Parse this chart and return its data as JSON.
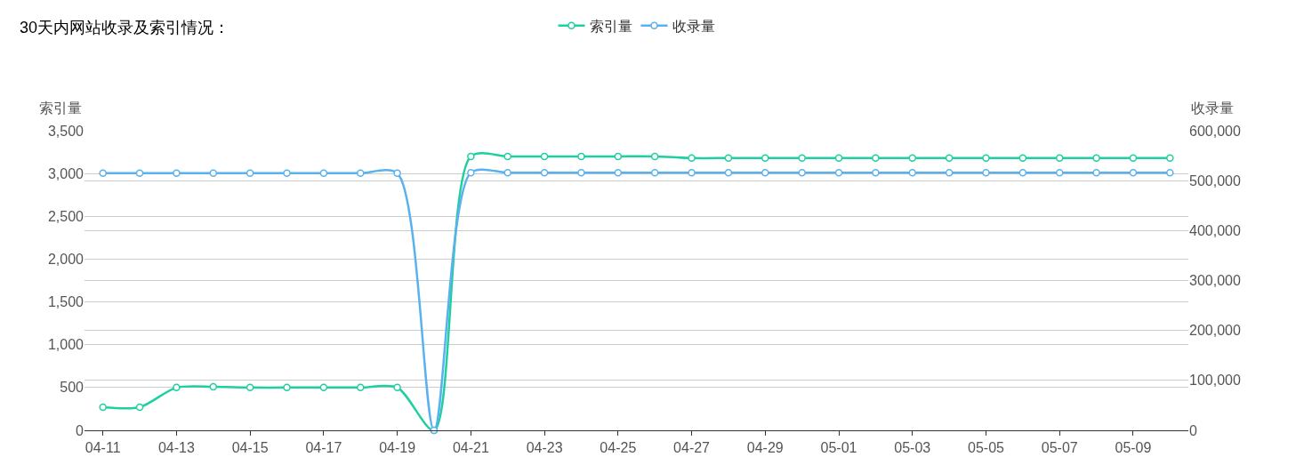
{
  "chart_data": {
    "type": "line",
    "title": "30天内网站收录及索引情况：",
    "ylabel": "索引量",
    "y2label": "收录量",
    "categories": [
      "04-11",
      null,
      "04-13",
      null,
      "04-15",
      null,
      "04-17",
      null,
      "04-19",
      null,
      "04-21",
      null,
      "04-23",
      null,
      "04-25",
      null,
      "04-27",
      null,
      "04-29",
      null,
      "05-01",
      null,
      "05-03",
      null,
      "05-05",
      null,
      "05-07",
      null,
      "05-09",
      null
    ],
    "series": [
      {
        "name": "索引量",
        "color": "#1fcf9f",
        "values": [
          270,
          270,
          500,
          510,
          500,
          500,
          500,
          500,
          500,
          0,
          3200,
          3200,
          3200,
          3200,
          3200,
          3200,
          3180,
          3180,
          3180,
          3180,
          3180,
          3180,
          3180,
          3180,
          3180,
          3180,
          3180,
          3180,
          3180,
          3180
        ]
      },
      {
        "name": "收录量",
        "color": "#5ab1ef",
        "axis": "y2",
        "values": [
          515000,
          515000,
          515000,
          515000,
          515000,
          515000,
          515000,
          515000,
          515000,
          0,
          516000,
          516000,
          516000,
          516000,
          516000,
          516000,
          516000,
          516000,
          516000,
          516000,
          516000,
          516000,
          516000,
          516000,
          516000,
          516000,
          516000,
          516000,
          516000,
          516000
        ]
      }
    ],
    "ylim": [
      0,
      3500
    ],
    "yticks": [
      0,
      {
        "value": 500,
        "label": "500"
      },
      {
        "value": 1000,
        "label": "1,000"
      },
      {
        "value": 1500,
        "label": "1,500"
      },
      {
        "value": 2000,
        "label": "2,000"
      },
      {
        "value": 2500,
        "label": "2,500"
      },
      {
        "value": 3000,
        "label": "3,000"
      },
      {
        "value": 3500,
        "label": "3,500"
      }
    ],
    "y2lim": [
      0,
      600000
    ],
    "y2ticks": [
      0,
      {
        "value": 100000,
        "label": "100,000"
      },
      {
        "value": 200000,
        "label": "200,000"
      },
      {
        "value": 300000,
        "label": "300,000"
      },
      {
        "value": 400000,
        "label": "400,000"
      },
      {
        "value": 500000,
        "label": "500,000"
      },
      {
        "value": 600000,
        "label": "600,000"
      }
    ],
    "grid": true,
    "legend": "top",
    "marker": "circle",
    "line_style": "solid"
  }
}
